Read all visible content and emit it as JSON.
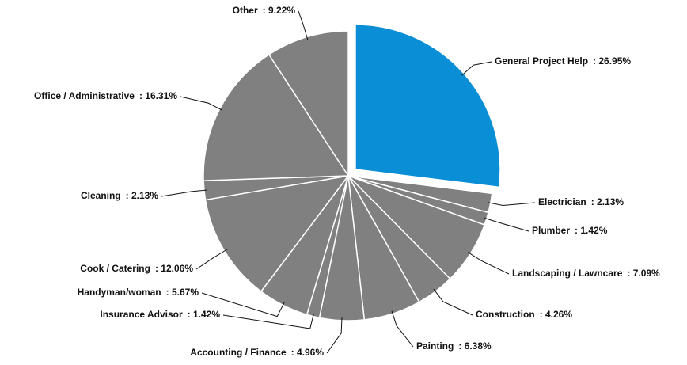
{
  "chart_data": {
    "type": "pie",
    "categories": [
      "General Project Help",
      "Electrician",
      "Plumber",
      "Landscaping / Lawncare",
      "Construction",
      "Painting",
      "Accounting / Finance",
      "Insurance Advisor",
      "Handyman/woman",
      "Cook / Catering",
      "Cleaning",
      "Office / Administrative",
      "Other"
    ],
    "values": [
      26.95,
      2.13,
      1.42,
      7.09,
      4.26,
      6.38,
      4.96,
      1.42,
      5.67,
      12.06,
      2.13,
      16.31,
      9.22
    ],
    "value_labels": [
      ": 26.95%",
      ": 2.13%",
      ": 1.42%",
      ": 7.09%",
      ": 4.26%",
      ": 6.38%",
      ": 4.96%",
      ": 1.42%",
      ": 5.67%",
      ": 12.06%",
      ": 2.13%",
      ": 16.31%",
      ": 9.22%"
    ],
    "colors": [
      "#0a8fd6",
      "#808080",
      "#808080",
      "#808080",
      "#808080",
      "#808080",
      "#808080",
      "#808080",
      "#808080",
      "#808080",
      "#808080",
      "#808080",
      "#808080"
    ],
    "exploded": [
      0
    ]
  }
}
